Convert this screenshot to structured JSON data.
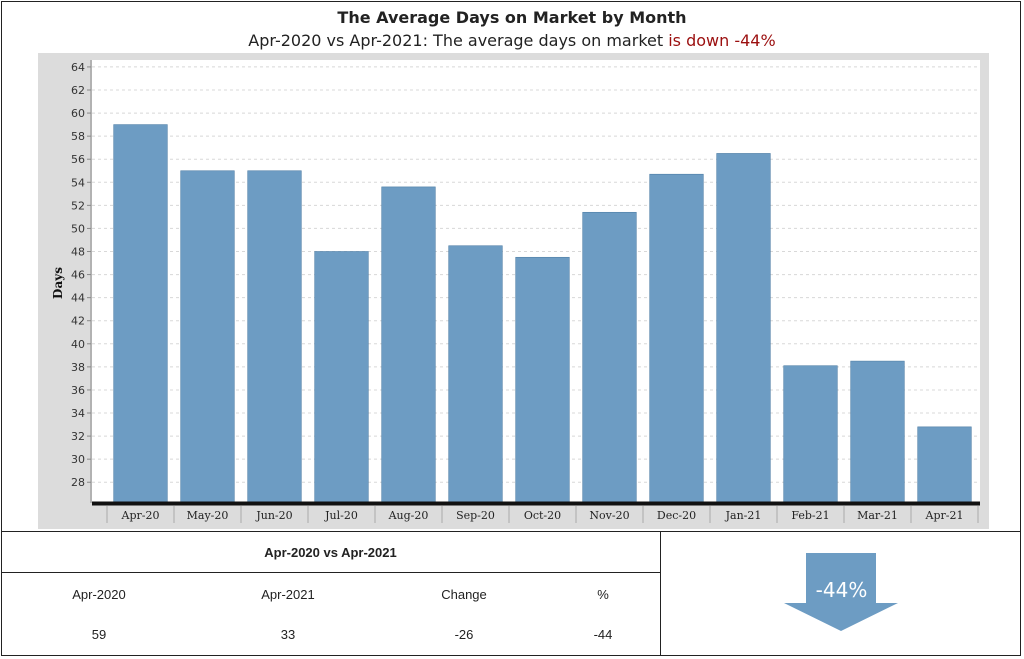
{
  "header": {
    "title": "The Average Days on Market by Month",
    "subtitle_prefix": "Apr-2020 vs Apr-2021: The average days on market ",
    "subtitle_highlight": "is down -44%"
  },
  "chart_data": {
    "type": "bar",
    "categories": [
      "Apr-20",
      "May-20",
      "Jun-20",
      "Jul-20",
      "Aug-20",
      "Sep-20",
      "Oct-20",
      "Nov-20",
      "Dec-20",
      "Jan-21",
      "Feb-21",
      "Mar-21",
      "Apr-21"
    ],
    "values": [
      59,
      55,
      55,
      48,
      53.6,
      48.5,
      47.5,
      51.4,
      54.7,
      56.5,
      38.1,
      38.5,
      32.8
    ],
    "ylabel": "Days",
    "xlabel": "",
    "ylim": [
      26.2,
      64.6
    ],
    "yticks": [
      28,
      30,
      32,
      34,
      36,
      38,
      40,
      42,
      44,
      46,
      48,
      50,
      52,
      54,
      56,
      58,
      60,
      62,
      64
    ],
    "grid": true,
    "bar_color": "#6d9cc3",
    "legend": "none"
  },
  "comparison": {
    "heading": "Apr-2020 vs Apr-2021",
    "columns": [
      "Apr-2020",
      "Apr-2021",
      "Change",
      "%"
    ],
    "values": [
      "59",
      "33",
      "-26",
      "-44"
    ]
  },
  "indicator": {
    "label": "-44%",
    "direction": "down",
    "color": "#6d9cc3"
  }
}
